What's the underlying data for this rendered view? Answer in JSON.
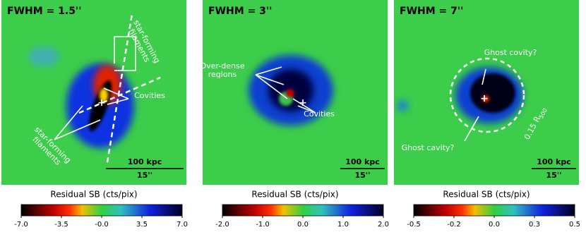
{
  "panels": [
    {
      "title": "FWHM = 1.5''",
      "annotations": [
        "star-forming filaments",
        "Covities",
        "star-forming filaments"
      ],
      "scale_kpc": "100 kpc",
      "scale_arcsec": "15''",
      "colorbar_label": "Residual SB (cts/pix)",
      "colorbar_ticks": [
        "-7.0",
        "-3.5",
        "-0.0",
        "3.5",
        "7.0"
      ]
    },
    {
      "title": "FWHM = 3''",
      "annotations": [
        "Over-dense regions",
        "Covities"
      ],
      "scale_kpc": "100 kpc",
      "scale_arcsec": "15''",
      "colorbar_label": "Residual SB (cts/pix)",
      "colorbar_ticks": [
        "-2.0",
        "-1.0",
        "0.0",
        "1.0",
        "2.0"
      ]
    },
    {
      "title": "FWHM = 7''",
      "annotations": [
        "Ghost covity?",
        "Ghost cavity?"
      ],
      "radius_label": "0.15 R",
      "radius_sub": "500",
      "scale_kpc": "100 kpc",
      "scale_arcsec": "15''",
      "colorbar_label": "Residual SB (cts/pix)",
      "colorbar_ticks": [
        "-0.5",
        "-0.2",
        "0.0",
        "0.3",
        "0.5"
      ]
    }
  ]
}
